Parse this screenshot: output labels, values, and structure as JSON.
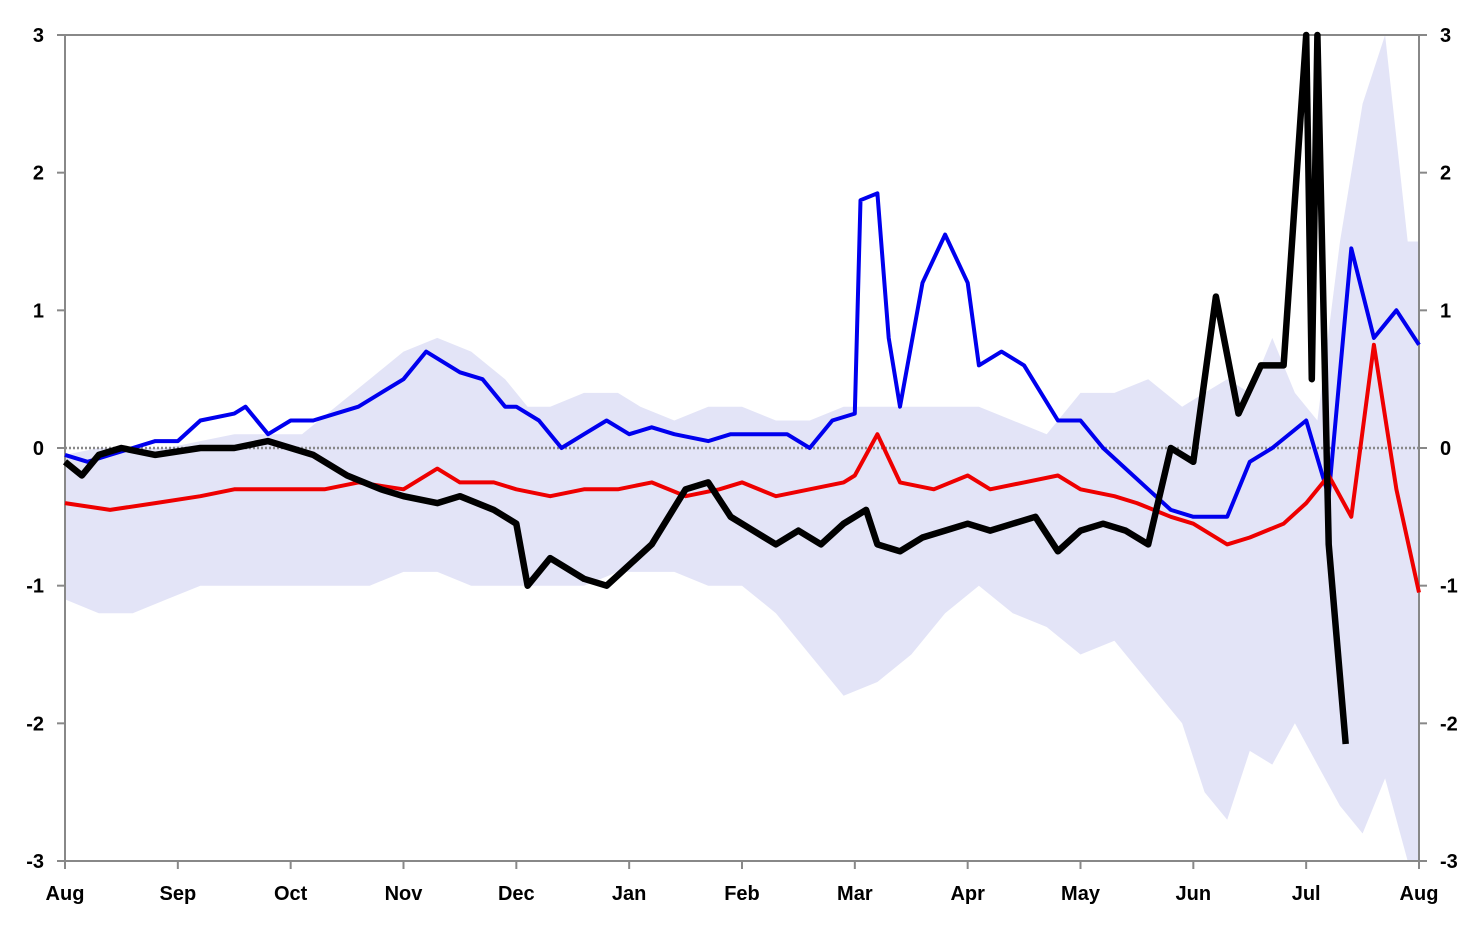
{
  "chart_data": {
    "type": "line",
    "title": "",
    "xlabel": "",
    "ylabel": "",
    "ylim": [
      -3,
      3
    ],
    "y2lim": [
      -3,
      3
    ],
    "grid": false,
    "legend": "none",
    "x_ticks": [
      "Aug",
      "Sep",
      "Oct",
      "Nov",
      "Dec",
      "Jan",
      "Feb",
      "Mar",
      "Apr",
      "May",
      "Jun",
      "Jul",
      "Aug"
    ],
    "y_ticks": [
      "3",
      "2",
      "1",
      "0",
      "-1",
      "-2",
      "-3"
    ],
    "zero_line": "dotted",
    "colors": {
      "blue": "#0000ee",
      "red": "#ee0000",
      "black": "#000000",
      "band": "#e3e4f7",
      "axis": "#888888"
    },
    "band": {
      "x": [
        0,
        0.3,
        0.6,
        0.9,
        1.2,
        1.5,
        1.8,
        2.1,
        2.4,
        2.7,
        3.0,
        3.3,
        3.6,
        3.9,
        4.1,
        4.3,
        4.6,
        4.9,
        5.1,
        5.4,
        5.7,
        6.0,
        6.3,
        6.6,
        6.9,
        7.2,
        7.5,
        7.8,
        8.1,
        8.4,
        8.7,
        9.0,
        9.3,
        9.6,
        9.9,
        10.1,
        10.3,
        10.5,
        10.7,
        10.9,
        11.1,
        11.3,
        11.5,
        11.7,
        11.9,
        12.0
      ],
      "high": [
        -0.05,
        0,
        0,
        0,
        0.05,
        0.1,
        0.1,
        0.1,
        0.3,
        0.5,
        0.7,
        0.8,
        0.7,
        0.5,
        0.3,
        0.3,
        0.4,
        0.4,
        0.3,
        0.2,
        0.3,
        0.3,
        0.2,
        0.2,
        0.3,
        0.3,
        0.3,
        0.3,
        0.3,
        0.2,
        0.1,
        0.4,
        0.4,
        0.5,
        0.3,
        0.4,
        0.5,
        0.4,
        0.8,
        0.4,
        0.2,
        1.5,
        2.5,
        3.0,
        1.5,
        1.5
      ],
      "low": [
        -1.1,
        -1.2,
        -1.2,
        -1.1,
        -1.0,
        -1.0,
        -1.0,
        -1.0,
        -1.0,
        -1.0,
        -0.9,
        -0.9,
        -1.0,
        -1.0,
        -1.0,
        -1.0,
        -1.0,
        -0.9,
        -0.9,
        -0.9,
        -1.0,
        -1.0,
        -1.2,
        -1.5,
        -1.8,
        -1.7,
        -1.5,
        -1.2,
        -1.0,
        -1.2,
        -1.3,
        -1.5,
        -1.4,
        -1.7,
        -2.0,
        -2.5,
        -2.7,
        -2.2,
        -2.3,
        -2.0,
        -2.3,
        -2.6,
        -2.8,
        -2.4,
        -3.0,
        -3.0
      ]
    },
    "series": [
      {
        "color": "#0000ee",
        "x": [
          0,
          0.2,
          0.4,
          0.6,
          0.8,
          1.0,
          1.2,
          1.5,
          1.6,
          1.8,
          2.0,
          2.2,
          2.4,
          2.6,
          2.8,
          3.0,
          3.2,
          3.5,
          3.7,
          3.9,
          4.0,
          4.2,
          4.4,
          4.6,
          4.8,
          5.0,
          5.2,
          5.4,
          5.7,
          5.9,
          6.2,
          6.4,
          6.6,
          6.8,
          7.0,
          7.05,
          7.2,
          7.3,
          7.4,
          7.6,
          7.8,
          8.0,
          8.1,
          8.3,
          8.5,
          8.8,
          9.0,
          9.2,
          9.4,
          9.6,
          9.8,
          10.0,
          10.3,
          10.5,
          10.7,
          11.0,
          11.2,
          11.4,
          11.6,
          11.8,
          12.0
        ],
        "y": [
          -0.05,
          -0.1,
          -0.05,
          0,
          0.05,
          0.05,
          0.2,
          0.25,
          0.3,
          0.1,
          0.2,
          0.2,
          0.25,
          0.3,
          0.4,
          0.5,
          0.7,
          0.55,
          0.5,
          0.3,
          0.3,
          0.2,
          0.0,
          0.1,
          0.2,
          0.1,
          0.15,
          0.1,
          0.05,
          0.1,
          0.1,
          0.1,
          0.0,
          0.2,
          0.25,
          1.8,
          1.85,
          0.8,
          0.3,
          1.2,
          1.55,
          1.2,
          0.6,
          0.7,
          0.6,
          0.2,
          0.2,
          0.0,
          -0.15,
          -0.3,
          -0.45,
          -0.5,
          -0.5,
          -0.1,
          0.0,
          0.2,
          -0.35,
          1.45,
          0.8,
          1.0,
          0.75
        ]
      },
      {
        "color": "#ee0000",
        "x": [
          0,
          0.4,
          0.8,
          1.2,
          1.5,
          1.8,
          2.0,
          2.3,
          2.6,
          3.0,
          3.3,
          3.5,
          3.8,
          4.0,
          4.3,
          4.6,
          4.9,
          5.2,
          5.5,
          5.8,
          6.0,
          6.3,
          6.6,
          6.9,
          7.0,
          7.2,
          7.4,
          7.7,
          8.0,
          8.2,
          8.5,
          8.8,
          9.0,
          9.3,
          9.5,
          9.8,
          10.0,
          10.3,
          10.5,
          10.8,
          11.0,
          11.2,
          11.4,
          11.6,
          11.8,
          12.0
        ],
        "y": [
          -0.4,
          -0.45,
          -0.4,
          -0.35,
          -0.3,
          -0.3,
          -0.3,
          -0.3,
          -0.25,
          -0.3,
          -0.15,
          -0.25,
          -0.25,
          -0.3,
          -0.35,
          -0.3,
          -0.3,
          -0.25,
          -0.35,
          -0.3,
          -0.25,
          -0.35,
          -0.3,
          -0.25,
          -0.2,
          0.1,
          -0.25,
          -0.3,
          -0.2,
          -0.3,
          -0.25,
          -0.2,
          -0.3,
          -0.35,
          -0.4,
          -0.5,
          -0.55,
          -0.7,
          -0.65,
          -0.55,
          -0.4,
          -0.2,
          -0.5,
          0.75,
          -0.3,
          -1.05
        ]
      },
      {
        "color": "#000000",
        "x": [
          0,
          0.15,
          0.3,
          0.5,
          0.8,
          1.2,
          1.5,
          1.8,
          2.0,
          2.2,
          2.5,
          2.8,
          3.0,
          3.3,
          3.5,
          3.8,
          4.0,
          4.1,
          4.3,
          4.6,
          4.8,
          5.0,
          5.2,
          5.5,
          5.7,
          5.9,
          6.1,
          6.3,
          6.5,
          6.7,
          6.9,
          7.1,
          7.2,
          7.4,
          7.6,
          7.8,
          8.0,
          8.2,
          8.4,
          8.6,
          8.8,
          9.0,
          9.2,
          9.4,
          9.6,
          9.8,
          10.0,
          10.2,
          10.4,
          10.6,
          10.8,
          11.0,
          11.05,
          11.1,
          11.2,
          11.35
        ],
        "y": [
          -0.1,
          -0.2,
          -0.05,
          0,
          -0.05,
          0,
          0,
          0.05,
          0,
          -0.05,
          -0.2,
          -0.3,
          -0.35,
          -0.4,
          -0.35,
          -0.45,
          -0.55,
          -1.0,
          -0.8,
          -0.95,
          -1.0,
          -0.85,
          -0.7,
          -0.3,
          -0.25,
          -0.5,
          -0.6,
          -0.7,
          -0.6,
          -0.7,
          -0.55,
          -0.45,
          -0.7,
          -0.75,
          -0.65,
          -0.6,
          -0.55,
          -0.6,
          -0.55,
          -0.5,
          -0.75,
          -0.6,
          -0.55,
          -0.6,
          -0.7,
          0.0,
          -0.1,
          1.1,
          0.25,
          0.6,
          0.6,
          3.0,
          0.5,
          3.0,
          -0.7,
          -2.15
        ]
      }
    ]
  }
}
